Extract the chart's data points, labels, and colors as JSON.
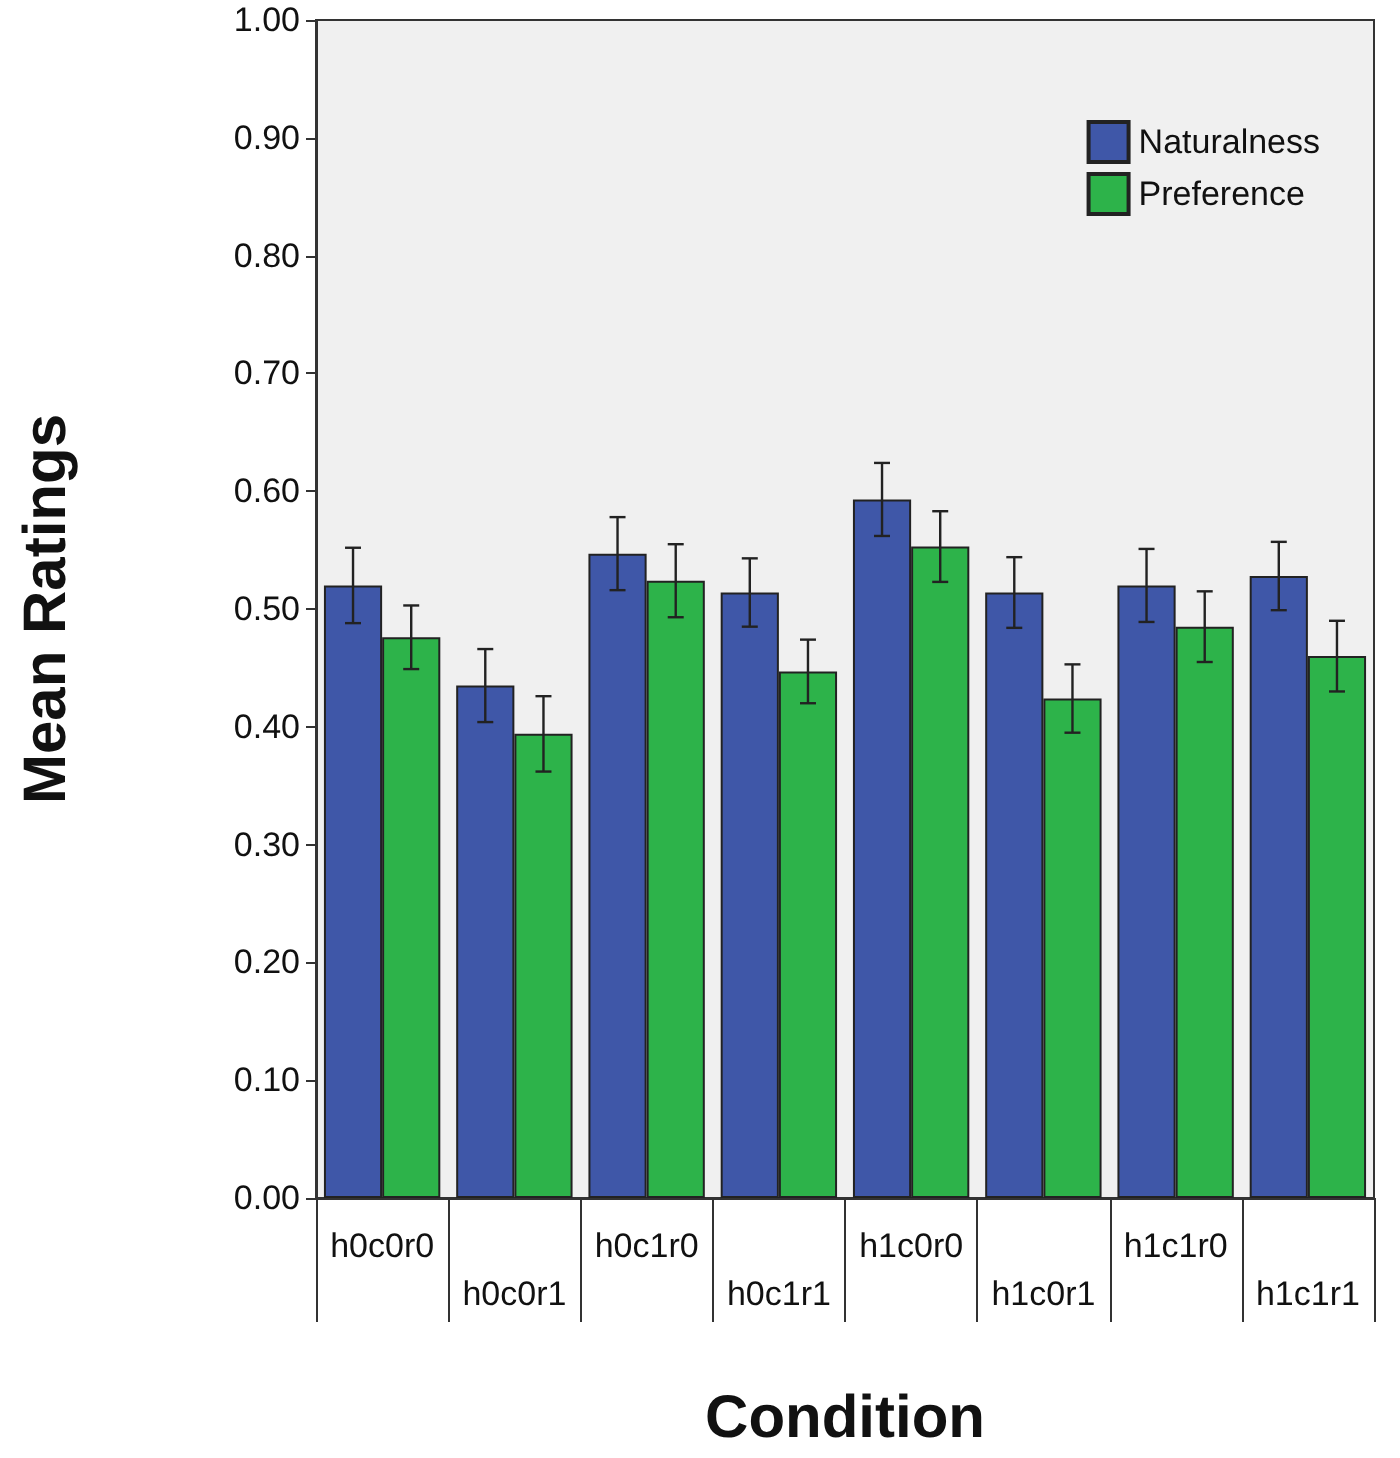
{
  "chart_data": {
    "type": "bar",
    "xlabel": "Condition",
    "ylabel": "Mean Ratings",
    "categories": [
      "h0c0r0",
      "h0c0r1",
      "h0c1r0",
      "h0c1r1",
      "h1c0r0",
      "h1c0r1",
      "h1c1r0",
      "h1c1r1"
    ],
    "series": [
      {
        "name": "Naturalness",
        "color": "#3f57a8",
        "values": [
          0.52,
          0.435,
          0.547,
          0.514,
          0.593,
          0.514,
          0.52,
          0.528
        ],
        "errors": [
          0.032,
          0.031,
          0.031,
          0.029,
          0.031,
          0.03,
          0.031,
          0.029
        ]
      },
      {
        "name": "Preference",
        "color": "#2db34a",
        "values": [
          0.476,
          0.394,
          0.524,
          0.447,
          0.553,
          0.424,
          0.485,
          0.46
        ],
        "errors": [
          0.027,
          0.032,
          0.031,
          0.027,
          0.03,
          0.029,
          0.03,
          0.03
        ]
      }
    ],
    "ylim": [
      0,
      1
    ],
    "yticks": [
      {
        "value": 0,
        "label": "0.00"
      },
      {
        "value": 0.1,
        "label": "0.10"
      },
      {
        "value": 0.2,
        "label": "0.20"
      },
      {
        "value": 0.3,
        "label": "0.30"
      },
      {
        "value": 0.4,
        "label": "0.40"
      },
      {
        "value": 0.5,
        "label": "0.50"
      },
      {
        "value": 0.6,
        "label": "0.60"
      },
      {
        "value": 0.7,
        "label": "0.70"
      },
      {
        "value": 0.8,
        "label": "0.80"
      },
      {
        "value": 0.9,
        "label": "0.90"
      },
      {
        "value": 1,
        "label": "1.00"
      }
    ],
    "grid": false,
    "legend": "top right"
  }
}
